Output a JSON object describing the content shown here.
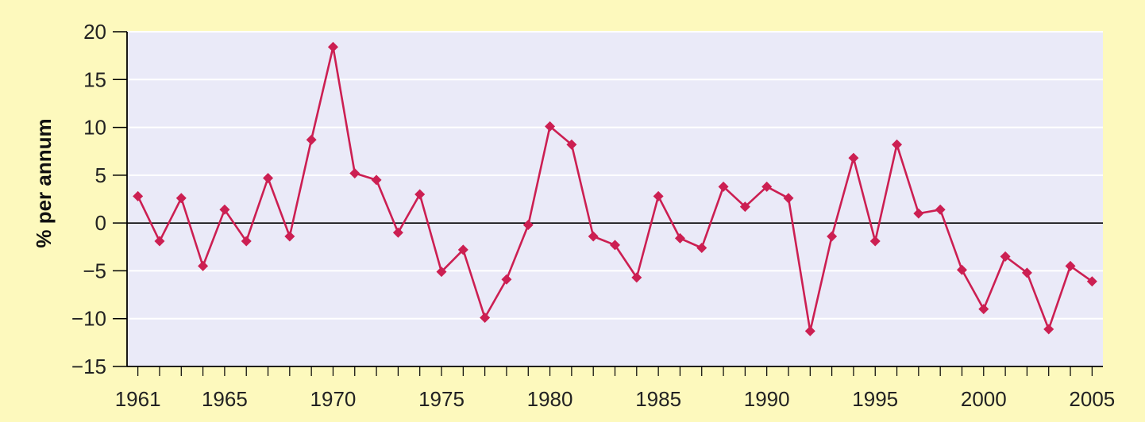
{
  "chart_data": {
    "type": "line",
    "title": "",
    "xlabel": "",
    "ylabel": "% per annum",
    "xlim": [
      1961,
      2005
    ],
    "ylim": [
      -15,
      20
    ],
    "grid": true,
    "x_ticks": [
      1961,
      1965,
      1970,
      1975,
      1980,
      1985,
      1990,
      1995,
      2000,
      2005
    ],
    "x_tick_labels": [
      "1961",
      "1965",
      "1970",
      "1975",
      "1980",
      "1985",
      "1990",
      "1995",
      "2000",
      "2005"
    ],
    "y_ticks": [
      -15,
      -10,
      -5,
      0,
      5,
      10,
      15,
      20
    ],
    "y_tick_labels": [
      "−15",
      "−10",
      "−5",
      "0",
      "5",
      "10",
      "15",
      "20"
    ],
    "series": [
      {
        "color": "#cc1f52",
        "marker": "diamond",
        "x": [
          1961,
          1962,
          1963,
          1964,
          1965,
          1966,
          1967,
          1968,
          1969,
          1970,
          1971,
          1972,
          1973,
          1974,
          1975,
          1976,
          1977,
          1978,
          1979,
          1980,
          1981,
          1982,
          1983,
          1984,
          1985,
          1986,
          1987,
          1988,
          1989,
          1990,
          1991,
          1992,
          1993,
          1994,
          1995,
          1996,
          1997,
          1998,
          1999,
          2000,
          2001,
          2002,
          2003,
          2004,
          2005
        ],
        "y": [
          2.8,
          -1.9,
          2.6,
          -4.5,
          1.4,
          -1.9,
          4.7,
          -1.4,
          8.7,
          18.4,
          5.2,
          4.5,
          -1.0,
          3.0,
          -5.1,
          -2.8,
          -9.9,
          -5.9,
          -0.2,
          10.1,
          8.2,
          -1.4,
          -2.3,
          -5.7,
          2.8,
          -1.6,
          -2.6,
          3.8,
          1.7,
          3.8,
          2.6,
          -11.3,
          -1.4,
          6.8,
          -1.9,
          8.2,
          1.0,
          1.4,
          -4.9,
          -9.0,
          -3.5,
          -5.2,
          -11.1,
          -4.5,
          -6.1
        ]
      }
    ],
    "colors": {
      "background": "#fdf9bd",
      "plot_area": "#eaeaf8",
      "grid": "#ffffff",
      "zero_line": "#000000"
    }
  }
}
